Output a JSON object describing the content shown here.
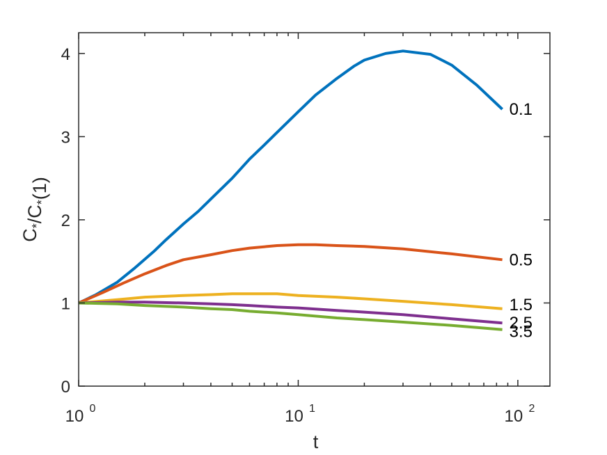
{
  "chart_data": {
    "type": "line",
    "xscale": "log",
    "xlim": [
      1,
      140
    ],
    "ylim": [
      0,
      4.25
    ],
    "grid": false,
    "xlabel": "t",
    "ylabel": "C*/C*(1)",
    "x_ticks": [
      {
        "value": 1,
        "base": "10",
        "exp": "0"
      },
      {
        "value": 10,
        "base": "10",
        "exp": "1"
      },
      {
        "value": 100,
        "base": "10",
        "exp": "2"
      }
    ],
    "y_ticks": [
      {
        "value": 0,
        "label": "0"
      },
      {
        "value": 1,
        "label": "1"
      },
      {
        "value": 2,
        "label": "2"
      },
      {
        "value": 3,
        "label": "3"
      },
      {
        "value": 4,
        "label": "4"
      }
    ],
    "series": [
      {
        "name": "0.1",
        "color": "#0072BD",
        "x": [
          1,
          1.2,
          1.5,
          1.8,
          2.2,
          2.5,
          3,
          3.5,
          4,
          5,
          6,
          7,
          8,
          10,
          12,
          15,
          18,
          20,
          25,
          30,
          40,
          50,
          65,
          85
        ],
        "y": [
          1.0,
          1.1,
          1.25,
          1.42,
          1.62,
          1.76,
          1.95,
          2.1,
          2.25,
          2.5,
          2.73,
          2.9,
          3.05,
          3.3,
          3.5,
          3.7,
          3.85,
          3.92,
          4.0,
          4.03,
          3.99,
          3.86,
          3.62,
          3.33
        ]
      },
      {
        "name": "0.5",
        "color": "#D95319",
        "x": [
          1,
          1.3,
          1.6,
          2,
          2.5,
          3,
          4,
          5,
          6,
          8,
          10,
          12,
          15,
          20,
          30,
          50,
          85
        ],
        "y": [
          1.0,
          1.13,
          1.24,
          1.35,
          1.45,
          1.52,
          1.58,
          1.63,
          1.66,
          1.69,
          1.7,
          1.7,
          1.69,
          1.68,
          1.65,
          1.59,
          1.52
        ]
      },
      {
        "name": "1.5",
        "color": "#EDB120",
        "x": [
          1,
          1.5,
          2,
          3,
          4,
          5,
          6,
          8,
          10,
          15,
          20,
          30,
          50,
          85
        ],
        "y": [
          1.0,
          1.04,
          1.07,
          1.09,
          1.1,
          1.11,
          1.11,
          1.11,
          1.09,
          1.07,
          1.05,
          1.02,
          0.98,
          0.93
        ]
      },
      {
        "name": "2.5",
        "color": "#7E2F8E",
        "x": [
          1,
          1.5,
          2,
          3,
          4,
          5,
          6,
          8,
          10,
          15,
          20,
          30,
          50,
          85
        ],
        "y": [
          1.0,
          1.01,
          1.01,
          1.0,
          0.99,
          0.98,
          0.97,
          0.95,
          0.94,
          0.91,
          0.89,
          0.86,
          0.81,
          0.76
        ]
      },
      {
        "name": "3.5",
        "color": "#77AC30",
        "x": [
          1,
          1.5,
          2,
          3,
          4,
          5,
          6,
          8,
          10,
          15,
          20,
          30,
          50,
          85
        ],
        "y": [
          1.0,
          0.99,
          0.97,
          0.95,
          0.93,
          0.92,
          0.9,
          0.88,
          0.86,
          0.82,
          0.8,
          0.77,
          0.73,
          0.68
        ]
      }
    ]
  }
}
